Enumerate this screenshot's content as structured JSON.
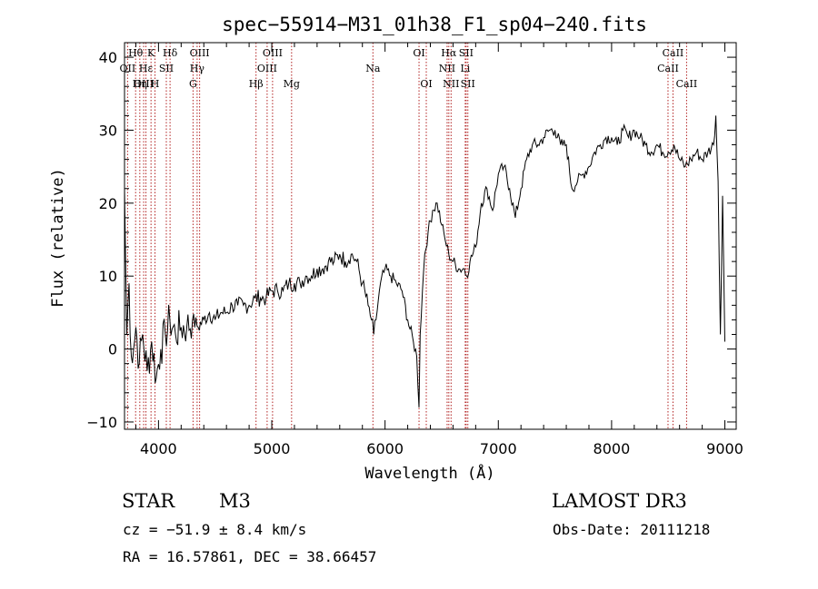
{
  "chart_data": {
    "type": "line",
    "title": "spec−55914−M31_01h38_F1_sp04−240.fits",
    "xlabel": "Wavelength (Å)",
    "ylabel": "Flux (relative)",
    "xlim": [
      3700,
      9100
    ],
    "ylim": [
      -11,
      42
    ],
    "xticks": [
      4000,
      5000,
      6000,
      7000,
      8000,
      9000
    ],
    "xtick_labels": [
      "4000",
      "5000",
      "6000",
      "7000",
      "8000",
      "9000"
    ],
    "yticks": [
      -10,
      0,
      10,
      20,
      30,
      40
    ],
    "ytick_labels": [
      "−10",
      "0",
      "10",
      "20",
      "30",
      "40"
    ],
    "line_color": "#000000",
    "marker_color": "#b22222",
    "lines": [
      {
        "label": "Hθ",
        "wave": 3798,
        "row": 0
      },
      {
        "label": "OII",
        "wave": 3727,
        "row": 1
      },
      {
        "label": "OIII",
        "wave": 3869,
        "row": 2
      },
      {
        "label": "Hη",
        "wave": 3835,
        "row": 2
      },
      {
        "label": "K",
        "wave": 3934,
        "row": 0
      },
      {
        "label": "Hε",
        "wave": 3889,
        "row": 1
      },
      {
        "label": "H",
        "wave": 3969,
        "row": 2
      },
      {
        "label": "SII",
        "wave": 4069,
        "row": 1
      },
      {
        "label": "Hδ",
        "wave": 4102,
        "row": 0
      },
      {
        "label": "OIII",
        "wave": 4363,
        "row": 0
      },
      {
        "label": "Hγ",
        "wave": 4341,
        "row": 1
      },
      {
        "label": "G",
        "wave": 4305,
        "row": 2
      },
      {
        "label": "Hβ",
        "wave": 4861,
        "row": 2
      },
      {
        "label": "OIII",
        "wave": 4959,
        "row": 1
      },
      {
        "label": "OIII",
        "wave": 5007,
        "row": 0
      },
      {
        "label": "Mg",
        "wave": 5175,
        "row": 2
      },
      {
        "label": "Na",
        "wave": 5893,
        "row": 1
      },
      {
        "label": "OI",
        "wave": 6300,
        "row": 0
      },
      {
        "label": "OI",
        "wave": 6364,
        "row": 2
      },
      {
        "label": "Hα",
        "wave": 6563,
        "row": 0
      },
      {
        "label": "NII",
        "wave": 6548,
        "row": 1
      },
      {
        "label": "NII",
        "wave": 6583,
        "row": 2
      },
      {
        "label": "SII",
        "wave": 6716,
        "row": 0
      },
      {
        "label": "Li",
        "wave": 6708,
        "row": 1
      },
      {
        "label": "SII",
        "wave": 6731,
        "row": 2
      },
      {
        "label": "CaII",
        "wave": 8542,
        "row": 0
      },
      {
        "label": "CaII",
        "wave": 8498,
        "row": 1
      },
      {
        "label": "CaII",
        "wave": 8662,
        "row": 2
      }
    ],
    "series": [
      {
        "name": "flux",
        "wave": [
          3700,
          3720,
          3740,
          3760,
          3780,
          3800,
          3830,
          3860,
          3900,
          3940,
          3980,
          4020,
          4060,
          4100,
          4150,
          4200,
          4250,
          4300,
          4350,
          4400,
          4450,
          4500,
          4550,
          4600,
          4650,
          4700,
          4750,
          4800,
          4850,
          4900,
          4950,
          5000,
          5050,
          5100,
          5150,
          5200,
          5250,
          5300,
          5350,
          5400,
          5450,
          5500,
          5550,
          5600,
          5650,
          5700,
          5750,
          5800,
          5850,
          5880,
          5900,
          5920,
          5950,
          6000,
          6050,
          6100,
          6150,
          6200,
          6250,
          6280,
          6300,
          6310,
          6330,
          6350,
          6380,
          6420,
          6460,
          6500,
          6530,
          6563,
          6600,
          6650,
          6700,
          6720,
          6750,
          6800,
          6850,
          6900,
          6950,
          7000,
          7050,
          7100,
          7150,
          7200,
          7250,
          7300,
          7350,
          7400,
          7450,
          7500,
          7550,
          7600,
          7650,
          7700,
          7750,
          7800,
          7850,
          7900,
          7950,
          8000,
          8050,
          8100,
          8150,
          8200,
          8250,
          8300,
          8350,
          8400,
          8450,
          8500,
          8550,
          8600,
          8650,
          8700,
          8750,
          8800,
          8850,
          8900,
          8920,
          8940,
          8960,
          8980,
          9000
        ],
        "flux": [
          22,
          2,
          9,
          -1,
          0,
          3,
          -2,
          2,
          -3,
          1,
          -4,
          0,
          2,
          4,
          2,
          3,
          3,
          4,
          3,
          4,
          5,
          4,
          5,
          5,
          6,
          6,
          6,
          6,
          7,
          7,
          7,
          8,
          8,
          8,
          9,
          9,
          9,
          10,
          10,
          11,
          11,
          12,
          12,
          13,
          12,
          13,
          12,
          9,
          6,
          4,
          2,
          4,
          8,
          11,
          10,
          9,
          8,
          4,
          1,
          -1,
          -8,
          2,
          8,
          13,
          16,
          19,
          20,
          17,
          15,
          13,
          12,
          11,
          11,
          10,
          12,
          14,
          20,
          22,
          19,
          24,
          25,
          22,
          18,
          22,
          26,
          28,
          28,
          29,
          30,
          30,
          28,
          28,
          22,
          23,
          24,
          25,
          27,
          28,
          29,
          29,
          28,
          30,
          29,
          30,
          29,
          28,
          27,
          28,
          27,
          27,
          28,
          26,
          25,
          26,
          27,
          26,
          27,
          28,
          32,
          23,
          2,
          21,
          1
        ]
      }
    ]
  },
  "info": {
    "object_class": "STAR",
    "subclass": "M3",
    "velocity": "cz = −51.9 ± 8.4 km/s",
    "coords": "RA =  16.57861, DEC =  38.66457",
    "survey": "LAMOST DR3",
    "obs_date": "Obs-Date: 20111218"
  }
}
